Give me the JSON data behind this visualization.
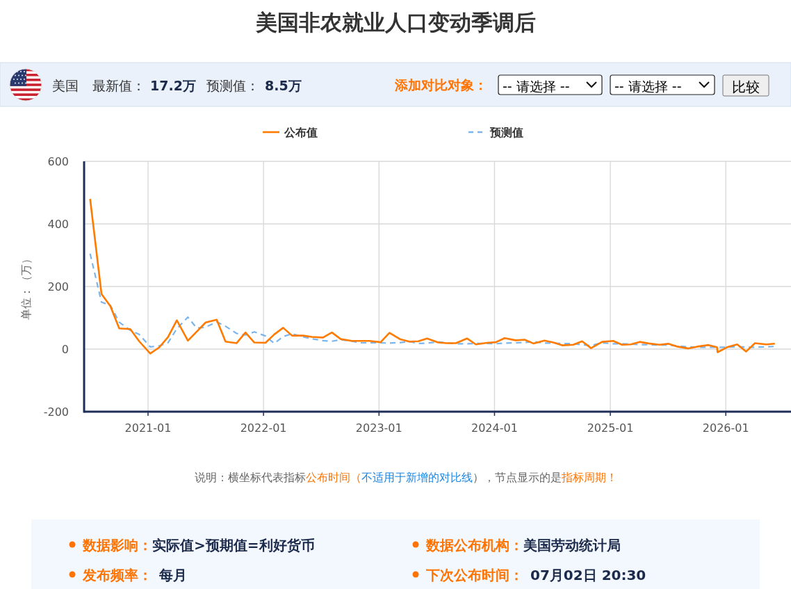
{
  "chart_data": {
    "type": "line",
    "title": "美国非农就业人口变动季调后",
    "ylabel": "单位：（万）",
    "x": [
      "2020-07-02",
      "2020-08-07",
      "2020-09-04",
      "2020-10-02",
      "2020-11-06",
      "2020-12-04",
      "2021-01-08",
      "2021-02-05",
      "2021-03-05",
      "2021-04-02",
      "2021-05-07",
      "2021-06-04",
      "2021-07-02",
      "2021-08-06",
      "2021-09-03",
      "2021-10-08",
      "2021-11-05",
      "2021-12-03",
      "2022-01-07",
      "2022-02-04",
      "2022-03-04",
      "2022-04-01",
      "2022-05-06",
      "2022-06-03",
      "2022-07-08",
      "2022-08-05",
      "2022-09-02",
      "2022-10-07",
      "2022-11-04",
      "2022-12-02",
      "2023-01-06",
      "2023-02-03",
      "2023-03-10",
      "2023-04-07",
      "2023-05-05",
      "2023-06-02",
      "2023-07-07",
      "2023-08-04",
      "2023-09-01",
      "2023-10-06",
      "2023-11-03",
      "2023-12-08",
      "2024-01-05",
      "2024-02-02",
      "2024-03-08",
      "2024-04-05",
      "2024-05-03",
      "2024-06-07",
      "2024-07-05",
      "2024-08-02",
      "2024-09-06",
      "2024-10-04",
      "2024-11-01",
      "2024-12-06",
      "2025-01-10",
      "2025-02-07",
      "2025-03-07",
      "2025-04-04",
      "2025-05-02",
      "2025-06-06",
      "2025-07-03",
      "2025-08-01",
      "2025-09-05",
      "2025-10-03",
      "2025-11-07",
      "2025-12-04",
      "2025-12-06",
      "2026-01-05",
      "2026-02-06",
      "2026-03-06",
      "2026-04-03",
      "2026-05-08",
      "2026-06-05"
    ],
    "series": [
      {
        "name": "公布值",
        "color": "#ff7b00",
        "line_style": "solid",
        "values": [
          480,
          176,
          137,
          66,
          64,
          25,
          -14,
          5,
          38,
          92,
          27,
          56,
          85,
          94,
          24,
          19,
          53,
          21,
          20,
          47,
          68,
          43,
          43,
          39,
          37,
          53,
          32,
          26,
          26,
          26,
          22,
          52,
          31,
          24,
          25,
          34,
          21,
          19,
          19,
          34,
          15,
          20,
          22,
          35,
          28,
          30,
          18,
          27,
          21,
          12,
          14,
          25,
          3,
          23,
          26,
          14,
          15,
          23,
          18,
          14,
          17,
          8,
          2,
          8,
          13,
          6,
          -10,
          6,
          15,
          -8,
          19,
          15,
          17.2
        ]
      },
      {
        "name": "预测值",
        "color": "#7cb5ec",
        "line_style": "dashed",
        "values": [
          305,
          150,
          140,
          86,
          60,
          47,
          7,
          10,
          20,
          65,
          102,
          67,
          70,
          87,
          73,
          50,
          45,
          55,
          42,
          18,
          40,
          49,
          39,
          33,
          27,
          25,
          30,
          25,
          20,
          20,
          20,
          19,
          21,
          24,
          18,
          19,
          23,
          20,
          17,
          17,
          18,
          18,
          17,
          19,
          20,
          21,
          24,
          19,
          19,
          18,
          17,
          14,
          11,
          20,
          17,
          17,
          16,
          14,
          14,
          13,
          13,
          10,
          7,
          6,
          6,
          6,
          6,
          6,
          8,
          6,
          6,
          7,
          8.5
        ]
      }
    ],
    "xlim": [
      "2020-06-13",
      "2026-07-26"
    ],
    "xticks": [
      "2021-01",
      "2022-01",
      "2023-01",
      "2024-01",
      "2025-01",
      "2026-01"
    ],
    "ylim": [
      -200,
      600
    ],
    "yticks": [
      -200,
      0,
      200,
      400,
      600
    ],
    "grid": true,
    "legend": "top",
    "annotations": [
      "美国",
      "最新值：",
      "17.2万",
      "预测值：",
      "8.5万",
      "添加对比对象：",
      "-- 请选择 --",
      "-- 请选择 --",
      "比较",
      "说明：横坐标代表指标",
      "公布时间（",
      "不适用于新增的对比线",
      "），节点显示的是",
      "指标周期！",
      "数据影响：",
      "实际值>预期值=利好货币",
      "数据公布机构：",
      "美国劳动统计局",
      "发布频率：",
      "每月",
      "下次公布时间：",
      "07月02日 20:30"
    ]
  }
}
